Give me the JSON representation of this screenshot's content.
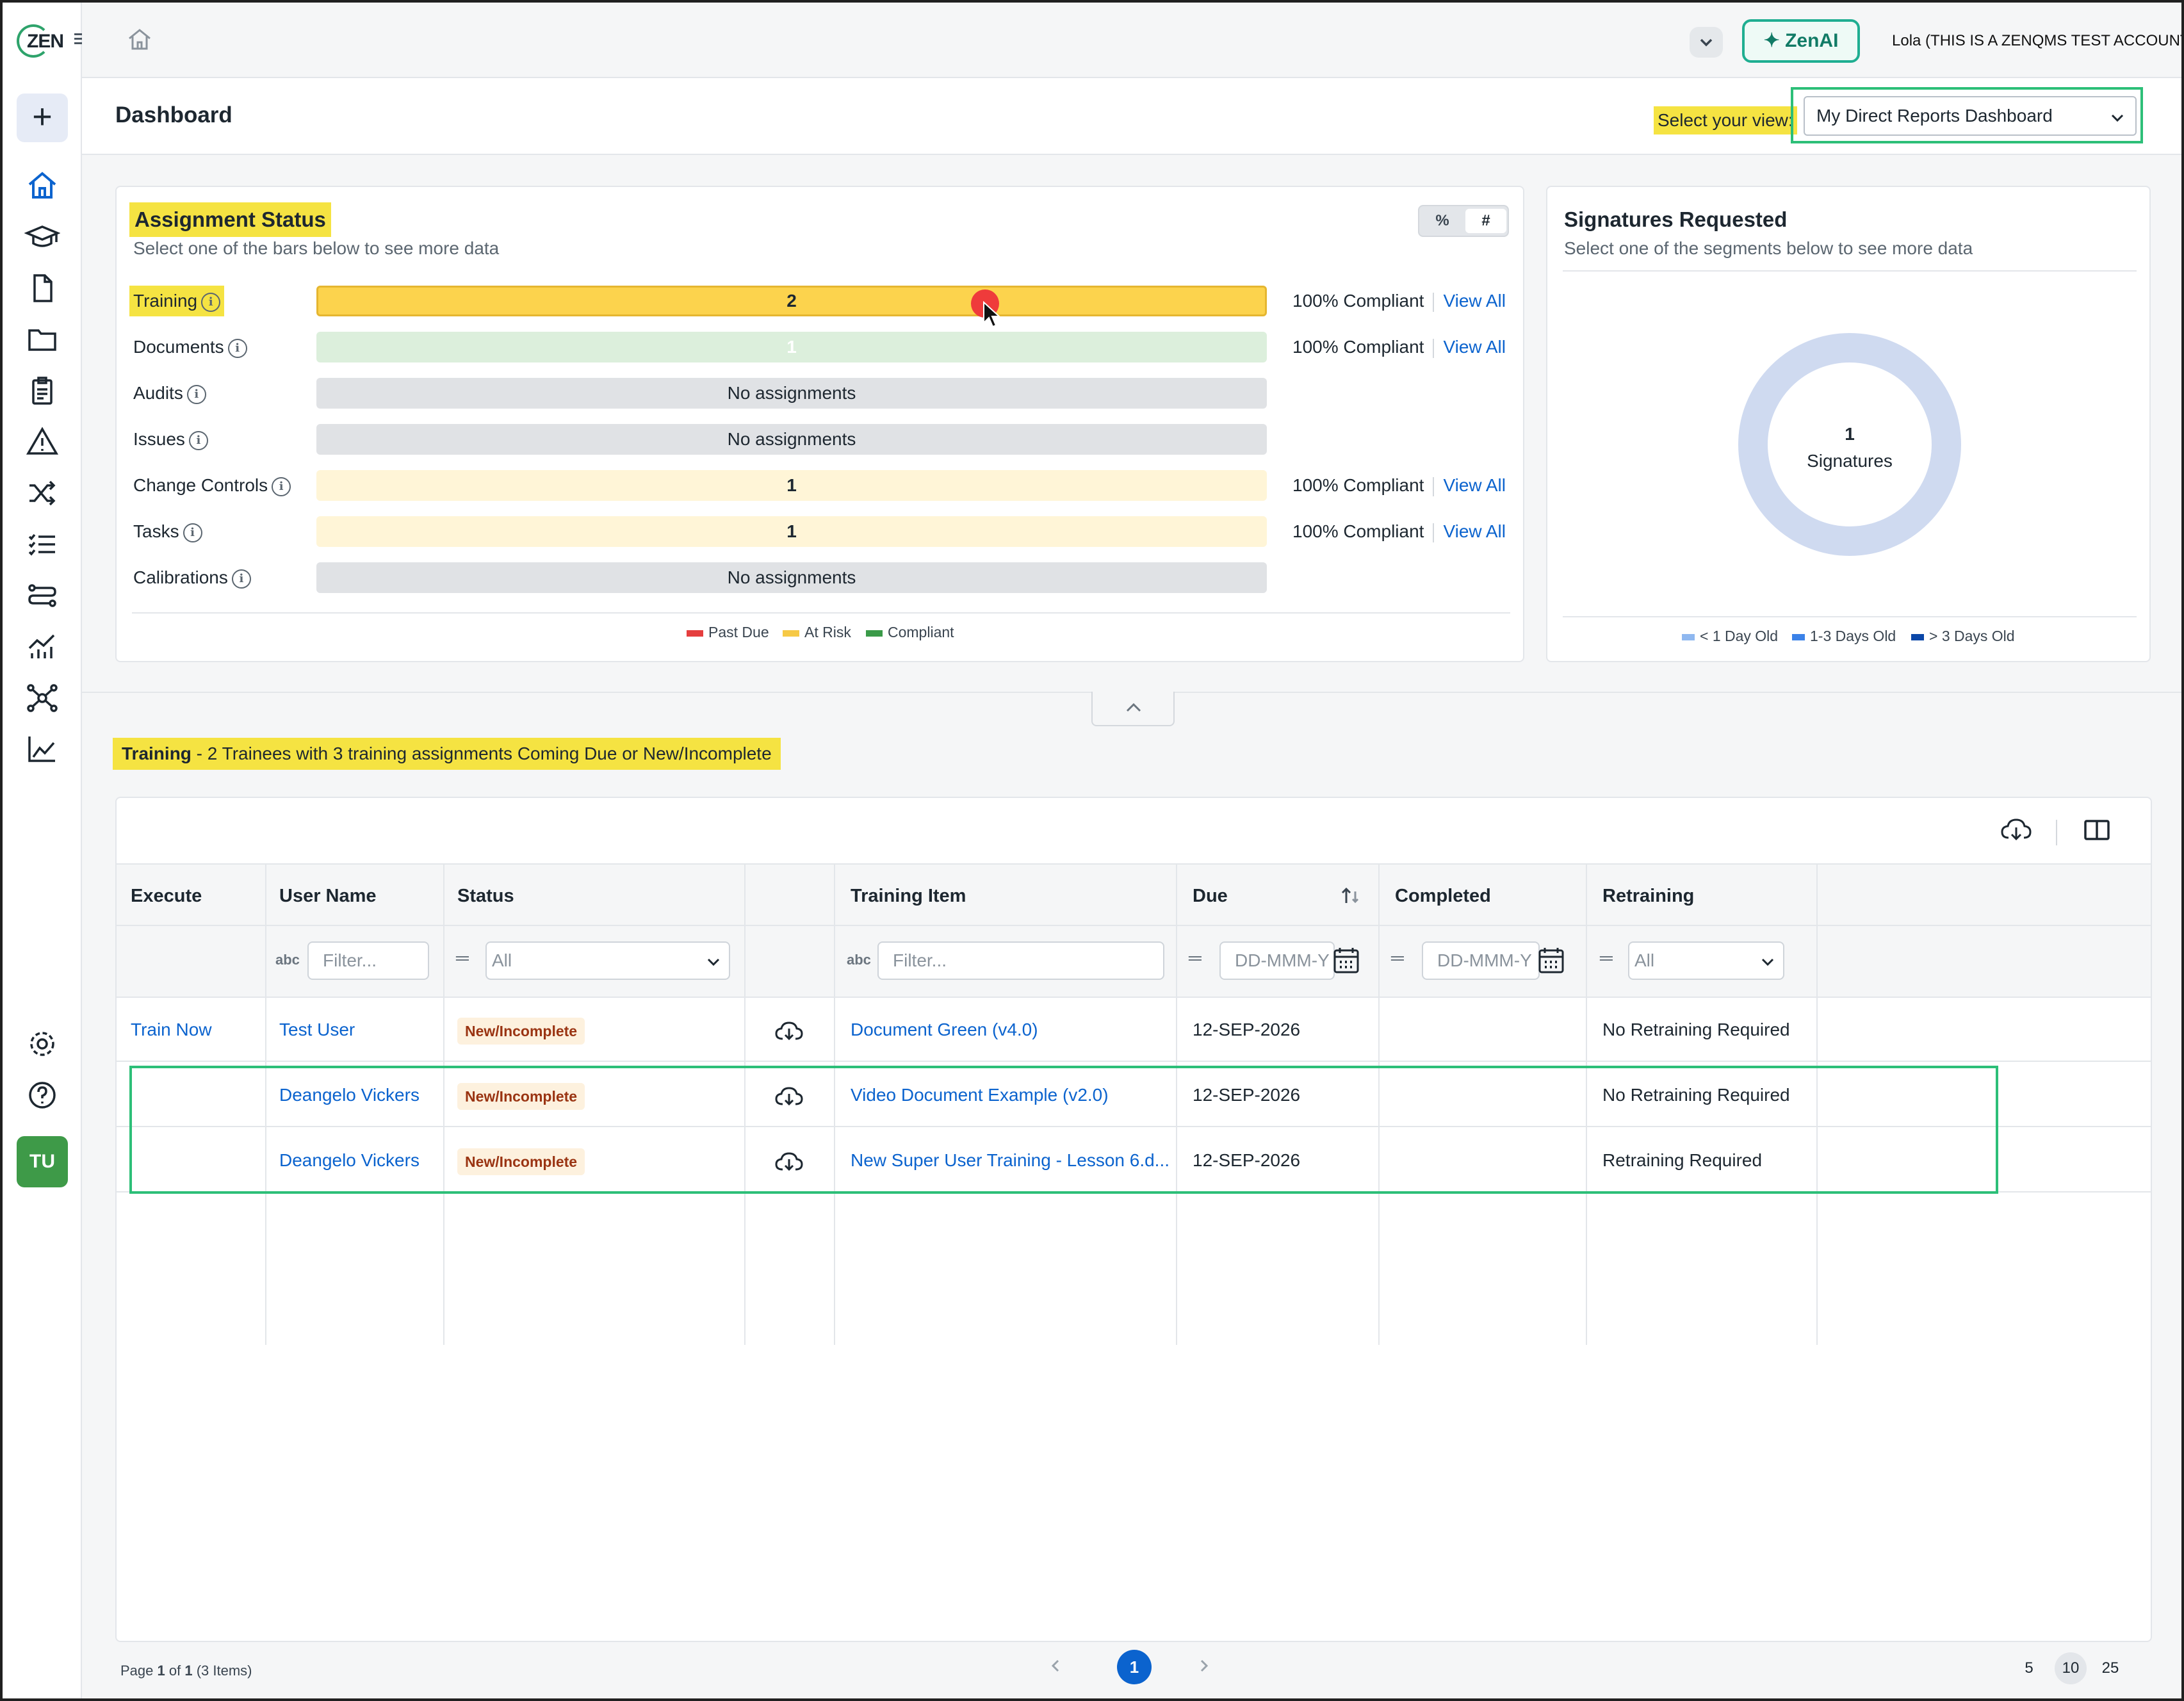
{
  "brand": {
    "logo": "ZEN"
  },
  "topbar": {
    "zenai_label": "ZenAI",
    "account": "Lola (THIS IS A ZENQMS TEST ACCOUNT)"
  },
  "header": {
    "title": "Dashboard",
    "view_label": "Select your view:",
    "view_value": "My Direct Reports Dashboard"
  },
  "assignment": {
    "title": "Assignment Status",
    "subtitle": "Select one of the bars below to see more data",
    "toggle": [
      "%",
      "#"
    ],
    "rows": [
      {
        "label": "Training",
        "bar": "2",
        "compliance": "100% Compliant",
        "link": "View All"
      },
      {
        "label": "Documents",
        "bar": "1",
        "compliance": "100% Compliant",
        "link": "View All"
      },
      {
        "label": "Audits",
        "bar": "No assignments"
      },
      {
        "label": "Issues",
        "bar": "No assignments"
      },
      {
        "label": "Change Controls",
        "bar": "1",
        "compliance": "100% Compliant",
        "link": "View All"
      },
      {
        "label": "Tasks",
        "bar": "1",
        "compliance": "100% Compliant",
        "link": "View All"
      },
      {
        "label": "Calibrations",
        "bar": "No assignments"
      }
    ],
    "legend": [
      {
        "label": "Past Due",
        "color": "#e53e3e"
      },
      {
        "label": "At Risk",
        "color": "#f6c945"
      },
      {
        "label": "Compliant",
        "color": "#3a9a48"
      }
    ]
  },
  "signatures": {
    "title": "Signatures Requested",
    "subtitle": "Select one of the segments below to see more data",
    "count": "1",
    "count_label": "Signatures",
    "legend": [
      {
        "label": "< 1 Day Old",
        "color": "#8fb8f0"
      },
      {
        "label": "1-3 Days Old",
        "color": "#3b82e8"
      },
      {
        "label": "> 3 Days Old",
        "color": "#0b47a8"
      }
    ]
  },
  "section": {
    "title_bold": "Training",
    "title_rest": " - 2 Trainees with 3 training assignments Coming Due or New/Incomplete"
  },
  "table": {
    "columns": [
      "Execute",
      "User Name",
      "Status",
      "",
      "Training Item",
      "Due",
      "Completed",
      "Retraining"
    ],
    "filters": {
      "user": "Filter...",
      "status": "All",
      "item": "Filter...",
      "due": "DD-MMM-Y",
      "completed": "DD-MMM-Y",
      "retraining": "All"
    },
    "rows": [
      {
        "execute": "Train Now",
        "user": "Test User",
        "status": "New/Incomplete",
        "item": "Document Green (v4.0)",
        "due": "12-SEP-2026",
        "completed": "",
        "retraining": "No Retraining Required"
      },
      {
        "execute": "",
        "user": "Deangelo Vickers",
        "status": "New/Incomplete",
        "item": "Video Document Example (v2.0)",
        "due": "12-SEP-2026",
        "completed": "",
        "retraining": "No Retraining Required"
      },
      {
        "execute": "",
        "user": "Deangelo Vickers",
        "status": "New/Incomplete",
        "item": "New Super User Training - Lesson 6.d...",
        "due": "12-SEP-2026",
        "completed": "",
        "retraining": "Retraining Required"
      }
    ]
  },
  "pager": {
    "page_prefix": "Page ",
    "page": "1",
    "of": " of ",
    "total": "1",
    "items": " (3 Items)",
    "current": "1",
    "sizes": [
      "5",
      "10",
      "25"
    ]
  }
}
